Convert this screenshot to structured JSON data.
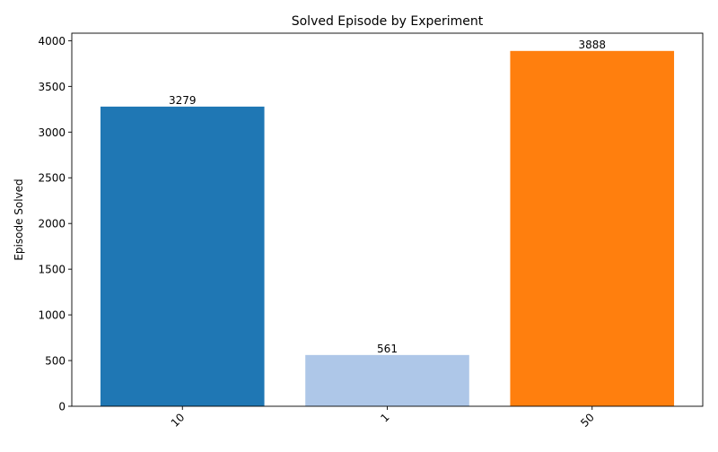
{
  "chart_data": {
    "type": "bar",
    "title": "Solved Episode by Experiment",
    "xlabel": "",
    "ylabel": "Episode Solved",
    "categories": [
      "10",
      "1",
      "50"
    ],
    "values": [
      3279,
      561,
      3888
    ],
    "data_labels": [
      "3279",
      "561",
      "3888"
    ],
    "colors": [
      "#1f77b4",
      "#aec7e8",
      "#ff7f0e"
    ],
    "ylim": [
      0,
      4082.4
    ],
    "yticks": [
      0,
      500,
      1000,
      1500,
      2000,
      2500,
      3000,
      3500,
      4000
    ],
    "ytick_labels": [
      "0",
      "500",
      "1000",
      "1500",
      "2000",
      "2500",
      "3000",
      "3500",
      "4000"
    ],
    "xtick_rotation_deg": -45,
    "grid": false,
    "legend": "none"
  }
}
